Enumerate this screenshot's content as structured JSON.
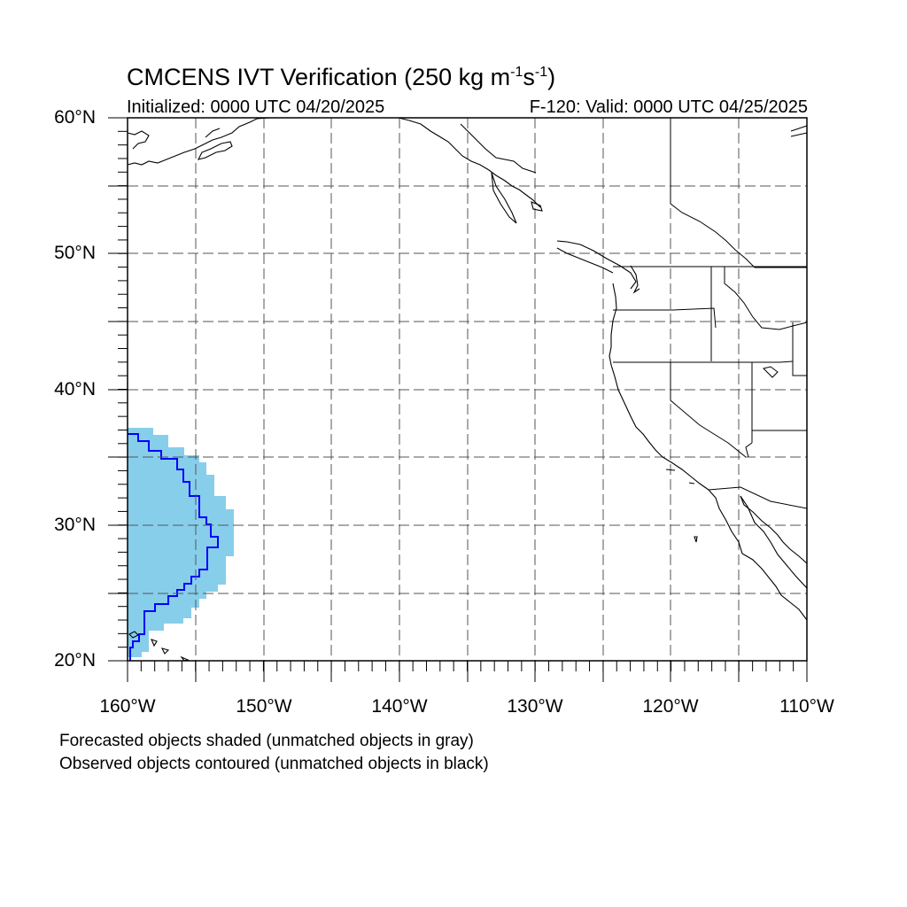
{
  "title": {
    "main": "CMCENS IVT Verification (250 kg m",
    "exp1": "-1",
    "mid": "s",
    "exp2": "-1",
    "end": ")"
  },
  "initialized": "Initialized: 0000 UTC 04/20/2025",
  "valid": "F-120: Valid: 0000 UTC 04/25/2025",
  "lat_labels": [
    "60°N",
    "50°N",
    "40°N",
    "30°N",
    "20°N"
  ],
  "lon_labels": [
    "160°W",
    "150°W",
    "140°W",
    "130°W",
    "120°W",
    "110°W"
  ],
  "footnotes": [
    "Forecasted objects shaded (unmatched objects in gray)",
    "Observed objects contoured (unmatched objects in black)"
  ],
  "map": {
    "lon_range": [
      -160,
      -110
    ],
    "lat_range": [
      20,
      60
    ],
    "forecast_fill_color": "#87ceeb",
    "observed_contour_color": "#0000ff",
    "coastline_color": "#000000",
    "gridlines": "dashed"
  }
}
